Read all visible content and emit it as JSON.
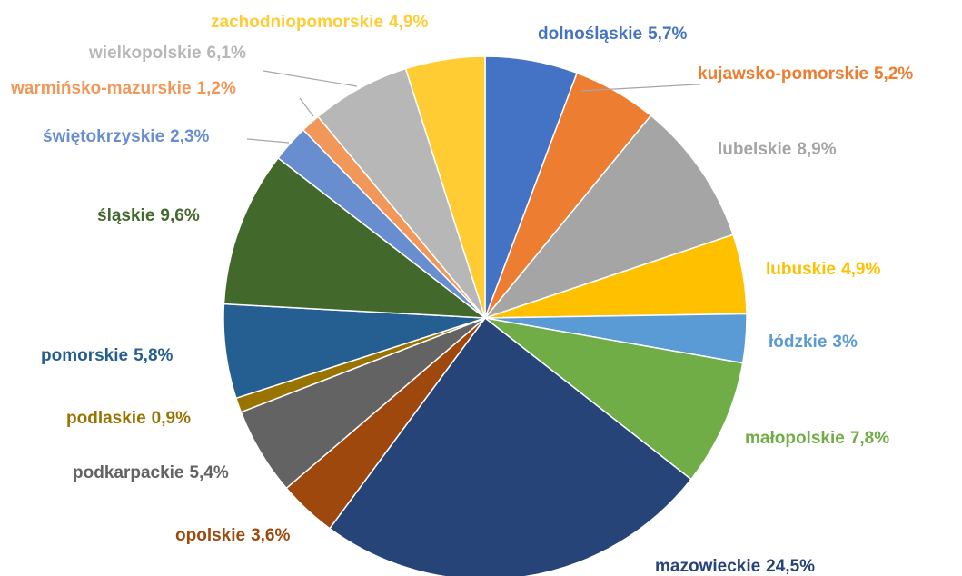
{
  "chart_data": {
    "type": "pie",
    "categories": [
      "dolnośląskie",
      "kujawsko-pomorskie",
      "lubelskie",
      "lubuskie",
      "łódzkie",
      "małopolskie",
      "mazowieckie",
      "opolskie",
      "podkarpackie",
      "podlaskie",
      "pomorskie",
      "śląskie",
      "świętokrzyskie",
      "warmińsko-mazurskie",
      "wielkopolskie",
      "zachodniopomorskie"
    ],
    "values": [
      5.7,
      5.2,
      8.9,
      4.9,
      3,
      7.8,
      24.5,
      3.6,
      5.4,
      0.9,
      5.8,
      9.6,
      2.3,
      1.2,
      6.1,
      4.9
    ],
    "value_labels": [
      "5,7%",
      "5,2%",
      "8,9%",
      "4,9%",
      "3%",
      "7,8%",
      "24,5%",
      "3,6%",
      "5,4%",
      "0,9%",
      "5,8%",
      "9,6%",
      "2,3%",
      "1,2%",
      "6,1%",
      "4,9%"
    ],
    "colors": [
      "#4472c4",
      "#ed7d31",
      "#a5a5a5",
      "#ffc000",
      "#5b9bd5",
      "#70ad47",
      "#264478",
      "#9e480e",
      "#636363",
      "#997300",
      "#255e91",
      "#43682b",
      "#698ed0",
      "#f1975a",
      "#b7b7b7",
      "#ffcd33"
    ]
  }
}
